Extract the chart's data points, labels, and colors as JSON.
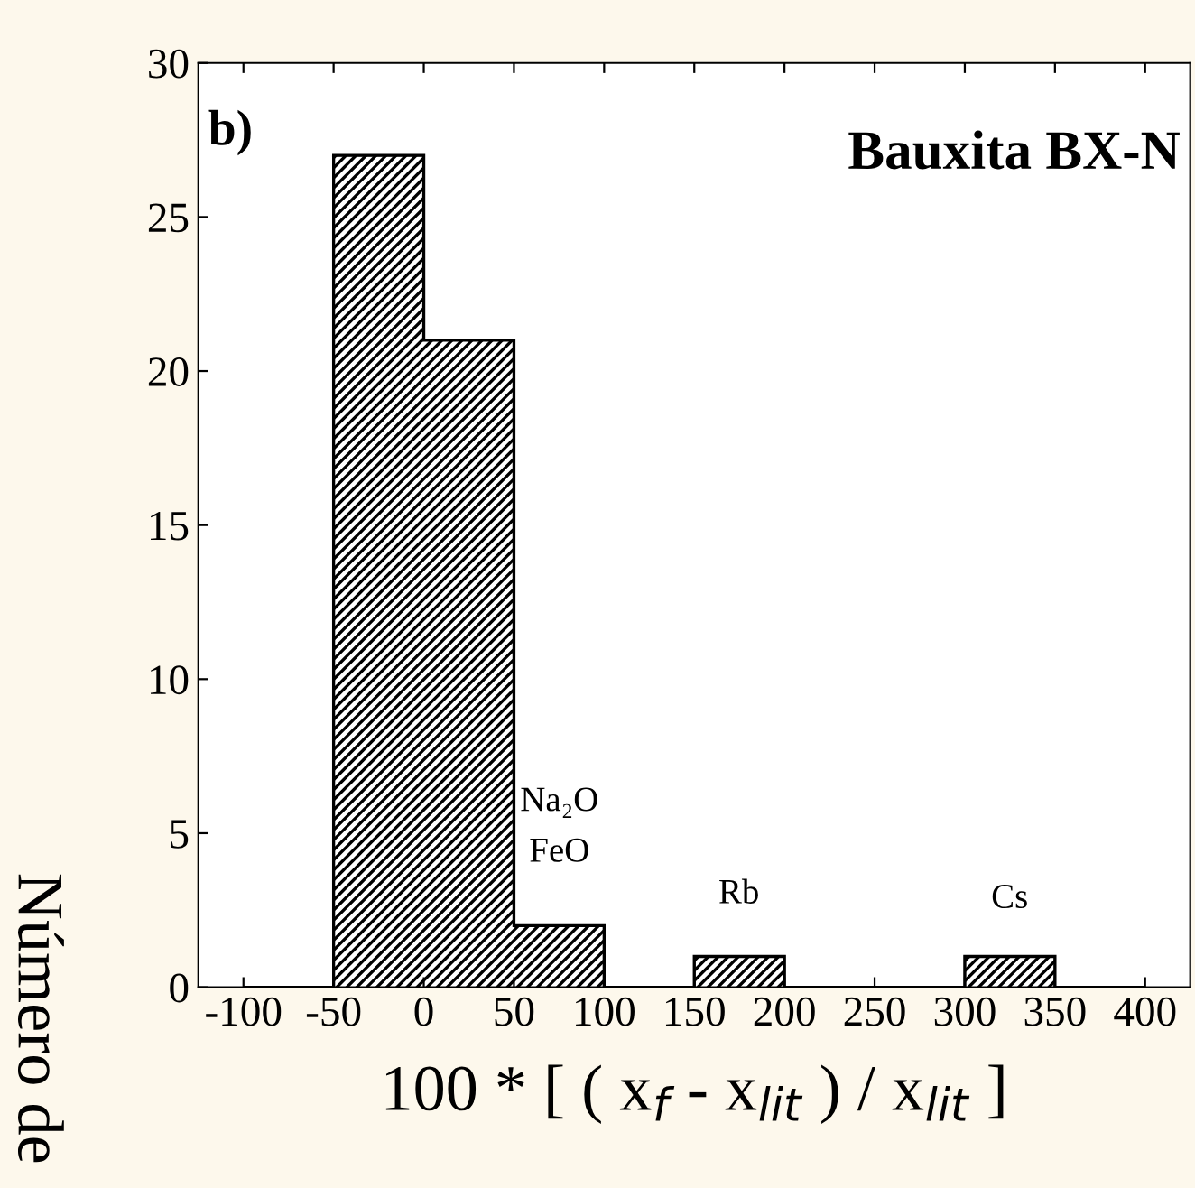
{
  "chart_data": {
    "type": "histogram",
    "title": "Bauxita BX-N",
    "xlabel": "100 * [ ( x$_{f}$ - x$_{lit}$ ) / x$_{lit}$ ]",
    "ylabel": "Número de",
    "bins": [
      -100,
      -50,
      0,
      50,
      100,
      150,
      200,
      250,
      300,
      350,
      400
    ],
    "values": [
      0,
      27,
      21,
      2,
      0,
      1,
      0,
      0,
      1,
      0
    ],
    "color": "#000000",
    "xlim": [
      -125,
      425
    ],
    "xticks": [
      -100,
      -50,
      0,
      50,
      100,
      150,
      200,
      250,
      300,
      350,
      400
    ],
    "ylim": [
      0,
      30
    ],
    "yticks": [
      0,
      5,
      10,
      15,
      20,
      25,
      30
    ],
    "grid": false,
    "annotations": [
      "b)",
      "Na₂O",
      "FeO",
      "Rb",
      "Cs"
    ]
  }
}
